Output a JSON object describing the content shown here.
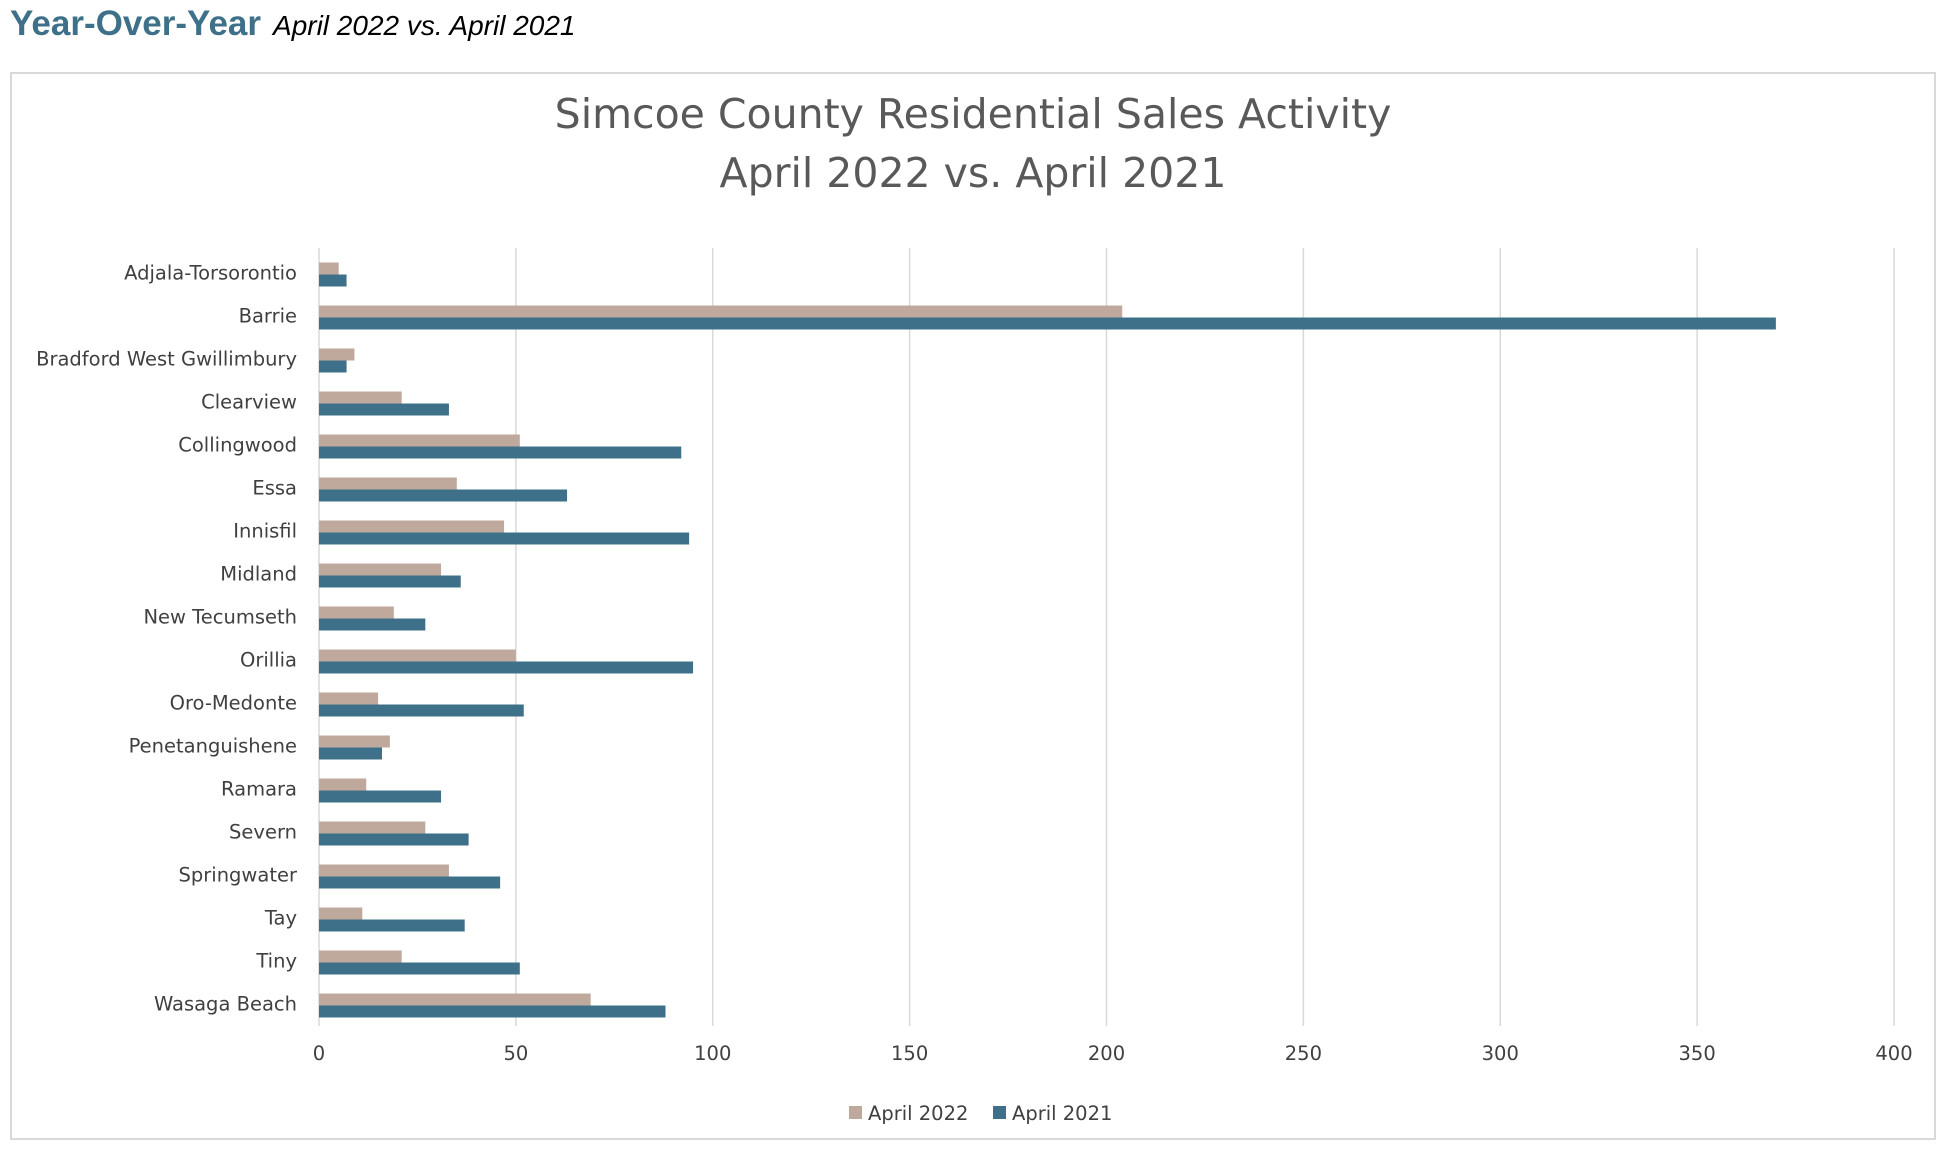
{
  "header": {
    "title": "Year-Over-Year",
    "subtitle": "April 2022 vs. April 2021"
  },
  "colors": {
    "header_title": "#3e7189",
    "series_2022": "#bfa99c",
    "series_2021": "#3e7189",
    "grid": "#d9d9d9",
    "frame": "#d9d9d9"
  },
  "chart_data": {
    "type": "bar",
    "orientation": "horizontal",
    "title_lines": [
      "Simcoe County Residential Sales Activity",
      "April 2022 vs. April 2021"
    ],
    "categories": [
      "Adjala-Torsorontio",
      "Barrie",
      "Bradford West Gwillimbury",
      "Clearview",
      "Collingwood",
      "Essa",
      "Innisfil",
      "Midland",
      "New Tecumseth",
      "Orillia",
      "Oro-Medonte",
      "Penetanguishene",
      "Ramara",
      "Severn",
      "Springwater",
      "Tay",
      "Tiny",
      "Wasaga Beach"
    ],
    "series": [
      {
        "name": "April 2022",
        "values": [
          5,
          204,
          9,
          21,
          51,
          35,
          47,
          31,
          19,
          50,
          15,
          18,
          12,
          27,
          33,
          11,
          21,
          69
        ]
      },
      {
        "name": "April 2021",
        "values": [
          7,
          370,
          7,
          33,
          92,
          63,
          94,
          36,
          27,
          95,
          52,
          16,
          31,
          38,
          46,
          37,
          51,
          88
        ]
      }
    ],
    "xlim": [
      0,
      400
    ],
    "xticks": [
      0,
      50,
      100,
      150,
      200,
      250,
      300,
      350,
      400
    ],
    "grid": "vertical",
    "legend_position": "bottom"
  }
}
